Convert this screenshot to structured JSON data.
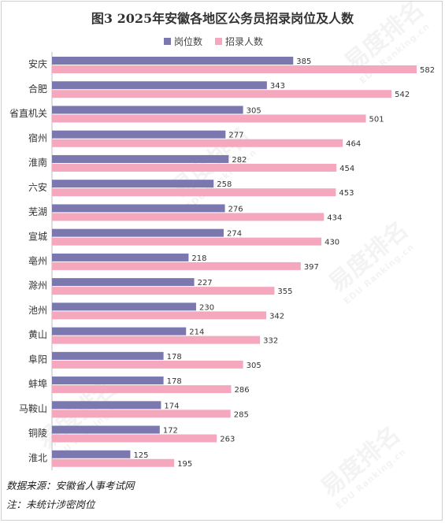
{
  "chart_data": {
    "type": "bar",
    "orientation": "horizontal",
    "title": "图3 2025年安徽各地区公务员招录岗位及人数",
    "categories": [
      "安庆",
      "合肥",
      "省直机关",
      "宿州",
      "淮南",
      "六安",
      "芜湖",
      "宣城",
      "亳州",
      "滁州",
      "池州",
      "黄山",
      "阜阳",
      "蚌埠",
      "马鞍山",
      "铜陵",
      "淮北"
    ],
    "series": [
      {
        "name": "岗位数",
        "color": "#7B78B0",
        "values": [
          385,
          343,
          305,
          277,
          282,
          258,
          276,
          274,
          218,
          227,
          230,
          214,
          178,
          178,
          174,
          172,
          125
        ]
      },
      {
        "name": "招录人数",
        "color": "#F5A7BD",
        "values": [
          582,
          542,
          501,
          464,
          454,
          453,
          434,
          430,
          397,
          355,
          342,
          332,
          305,
          286,
          285,
          263,
          195
        ]
      }
    ],
    "xlim": [
      0,
      600
    ],
    "legend_position": "top",
    "grid": false
  },
  "footer": {
    "source": "数据来源：安徽省人事考试网",
    "note": "注：未统计涉密岗位"
  },
  "watermark": {
    "text": "易度排名",
    "subtext": "EDU Ranking.cn"
  }
}
